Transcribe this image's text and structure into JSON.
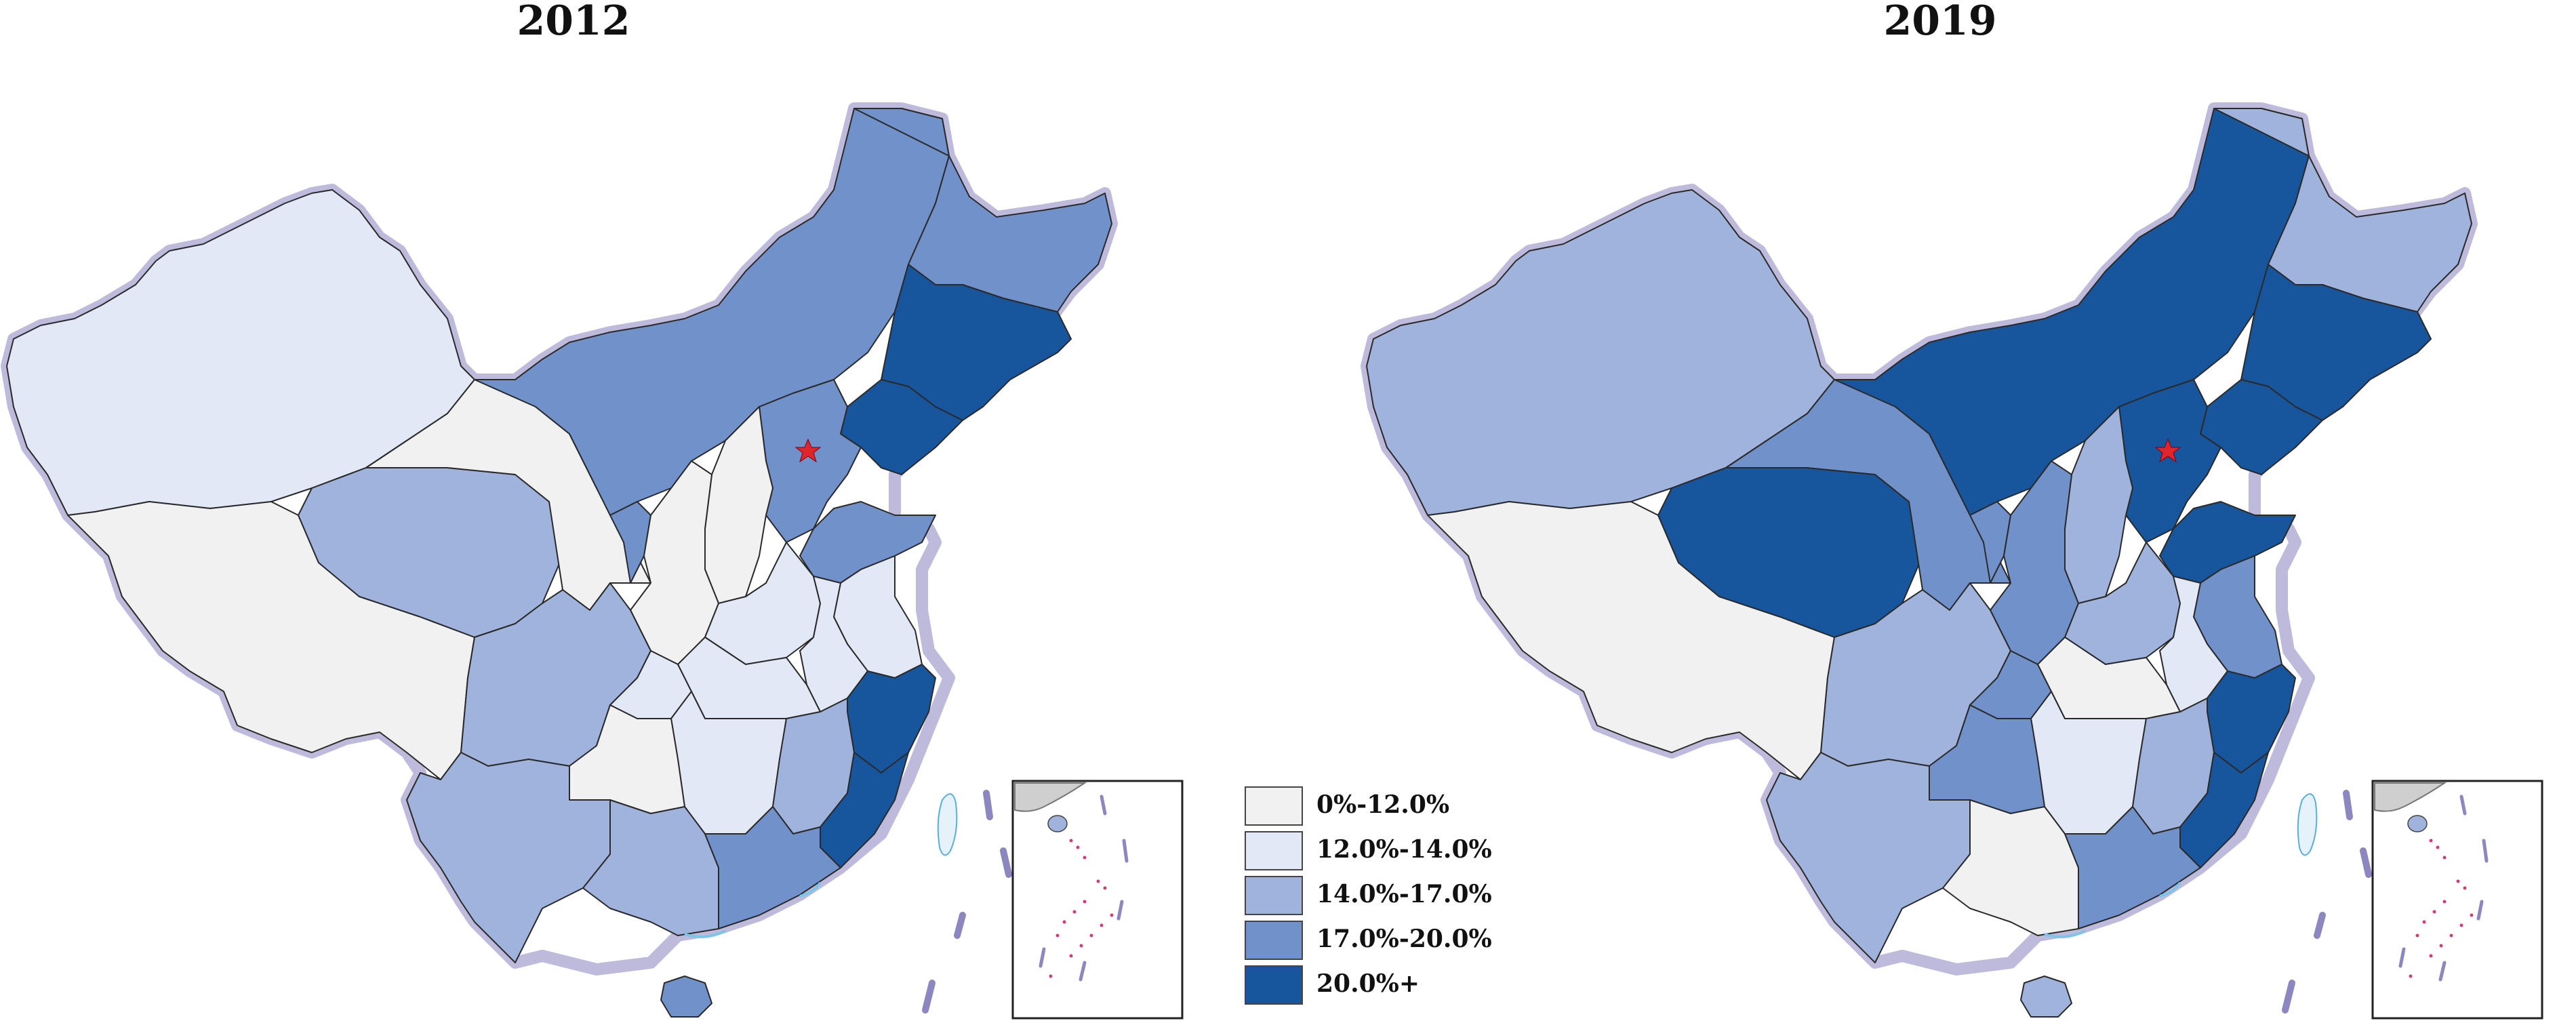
{
  "maps": [
    {
      "title": "2012",
      "regions": {
        "xinjiang": "12.0%-14.0%",
        "tibet": "0%-12.0%",
        "qinghai": "14.0%-17.0%",
        "gansu": "0%-12.0%",
        "inner_mongolia": "17.0%-20.0%",
        "heilongjiang": "17.0%-20.0%",
        "jilin": "20.0%+",
        "liaoning": "20.0%+",
        "beijing": "20.0%+",
        "hebei": "17.0%-20.0%",
        "shanxi": "0%-12.0%",
        "shandong": "17.0%-20.0%",
        "ningxia": "17.0%-20.0%",
        "shaanxi": "0%-12.0%",
        "henan": "12.0%-14.0%",
        "jiangsu": "12.0%-14.0%",
        "anhui": "12.0%-14.0%",
        "sichuan": "14.0%-17.0%",
        "chongqing": "12.0%-14.0%",
        "hubei": "12.0%-14.0%",
        "zhejiang": "20.0%+",
        "hunan": "12.0%-14.0%",
        "jiangxi": "14.0%-17.0%",
        "guizhou": "0%-12.0%",
        "fujian": "20.0%+",
        "yunnan": "14.0%-17.0%",
        "guangxi": "14.0%-17.0%",
        "guangdong": "17.0%-20.0%",
        "hainan": "17.0%-20.0%"
      }
    },
    {
      "title": "2019",
      "regions": {
        "xinjiang": "14.0%-17.0%",
        "tibet": "0%-12.0%",
        "qinghai": "20.0%+",
        "gansu": "17.0%-20.0%",
        "inner_mongolia": "20.0%+",
        "heilongjiang": "14.0%-17.0%",
        "jilin": "20.0%+",
        "liaoning": "20.0%+",
        "beijing": "20.0%+",
        "hebei": "20.0%+",
        "shanxi": "14.0%-17.0%",
        "shandong": "20.0%+",
        "ningxia": "17.0%-20.0%",
        "shaanxi": "17.0%-20.0%",
        "henan": "14.0%-17.0%",
        "jiangsu": "17.0%-20.0%",
        "anhui": "12.0%-14.0%",
        "sichuan": "14.0%-17.0%",
        "chongqing": "17.0%-20.0%",
        "hubei": "0%-12.0%",
        "zhejiang": "20.0%+",
        "hunan": "12.0%-14.0%",
        "jiangxi": "14.0%-17.0%",
        "guizhou": "17.0%-20.0%",
        "fujian": "20.0%+",
        "yunnan": "14.0%-17.0%",
        "guangxi": "0%-12.0%",
        "guangdong": "17.0%-20.0%",
        "hainan": "14.0%-17.0%"
      }
    }
  ],
  "legend": [
    {
      "label": "0%-12.0%",
      "color": "#f1f1f1"
    },
    {
      "label": "12.0%-14.0%",
      "color": "#e2e8f5"
    },
    {
      "label": "14.0%-17.0%",
      "color": "#9fb3dc"
    },
    {
      "label": "17.0%-20.0%",
      "color": "#7191cb"
    },
    {
      "label": "20.0%+",
      "color": "#17559c"
    }
  ],
  "colors": {
    "border_glow": "#b3aed6",
    "province_stroke": "#2a2a2a",
    "capital_marker": "#e0262d",
    "taiwan": "#e6f2fa",
    "sea_line": "#7cc4e8"
  },
  "icons": [
    "capital-star-icon"
  ]
}
